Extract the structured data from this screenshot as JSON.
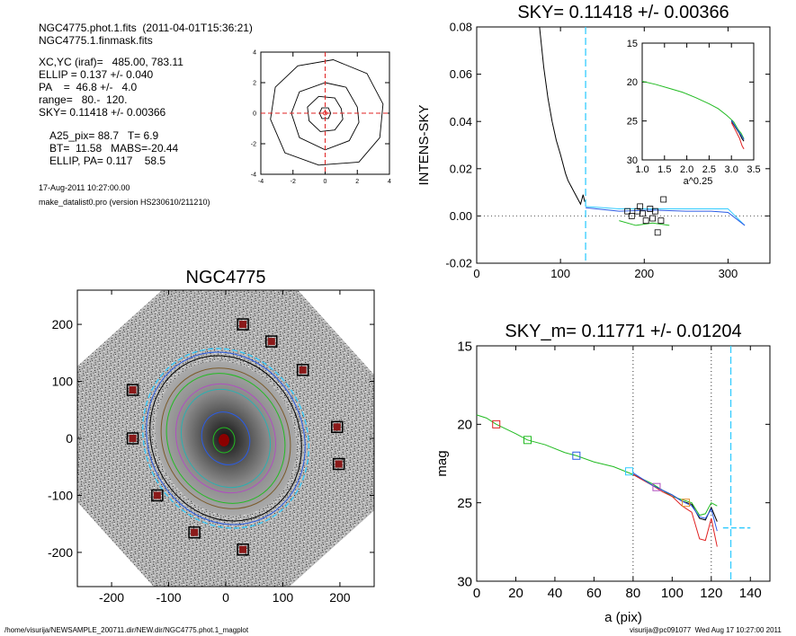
{
  "header": {
    "line1": "NGC4775.phot.1.fits  (2011-04-01T15:36:21)",
    "line2": "NGC4775.1.finmask.fits",
    "line3": "XC,YC (iraf)=   485.00, 783.11",
    "line4": "ELLIP = 0.137 +/- 0.040",
    "line5": "PA    =  46.8 +/-   4.0",
    "line6": "range=   80.-  120.",
    "line7": "SKY= 0.11418 +/- 0.00366",
    "line8": "A25_pix= 88.7   T= 6.9",
    "line9": "BT=  11.58   MABS=-20.44",
    "line10": "ELLIP, PA= 0.117    58.5",
    "date": "17-Aug-2011 10:27:00.00",
    "program": "make_datalist0.pro (version HS230610/211210)"
  },
  "footer": {
    "path": "/home/visurija/NEWSAMPLE_200711.dir/NEW.dir/NGC4775.phot.1_magplot",
    "stamp": "visurija@pc091077  Wed Aug 17 10:27:00 2011"
  },
  "image_title": "NGC4775",
  "colors": {
    "cyan": "#33ccff",
    "red": "#e02020",
    "green": "#22bb22",
    "blue": "#2a5ce6",
    "black": "#000000",
    "magenta": "#b04fc0",
    "orange": "#e09030",
    "gray": "#888888"
  },
  "chart_data": [
    {
      "type": "line",
      "panel": "contour",
      "title": "",
      "xlim": [
        -4,
        4
      ],
      "ylim": [
        -4,
        4
      ],
      "xticks": [
        "-4",
        "-2",
        "0",
        "2",
        "4"
      ],
      "yticks": [
        "-4",
        "-2",
        "0",
        "2",
        "4"
      ],
      "contours": [
        {
          "level": 1,
          "points": [
            [
              0.35,
              0
            ],
            [
              0.2,
              0.35
            ],
            [
              -0.2,
              0.35
            ],
            [
              -0.35,
              0
            ],
            [
              -0.2,
              -0.35
            ],
            [
              0.2,
              -0.35
            ]
          ]
        },
        {
          "level": 2,
          "points": [
            [
              1.0,
              0.3
            ],
            [
              0.6,
              1.0
            ],
            [
              -0.4,
              1.1
            ],
            [
              -1.1,
              0.4
            ],
            [
              -1.0,
              -0.5
            ],
            [
              -0.3,
              -1.2
            ],
            [
              0.6,
              -1.1
            ],
            [
              1.1,
              -0.4
            ]
          ]
        },
        {
          "level": 3,
          "points": [
            [
              2.0,
              0.4
            ],
            [
              1.3,
              1.7
            ],
            [
              0,
              2.0
            ],
            [
              -1.6,
              1.4
            ],
            [
              -2.1,
              0
            ],
            [
              -1.6,
              -1.6
            ],
            [
              0,
              -2.4
            ],
            [
              1.5,
              -1.8
            ],
            [
              2.1,
              -0.6
            ]
          ]
        },
        {
          "level": 4,
          "points": [
            [
              3.6,
              0.6
            ],
            [
              2.6,
              2.6
            ],
            [
              0.5,
              3.5
            ],
            [
              -1.7,
              3.1
            ],
            [
              -3.1,
              1.7
            ],
            [
              -3.4,
              -0.4
            ],
            [
              -2.5,
              -2.6
            ],
            [
              -0.4,
              -3.4
            ],
            [
              2.1,
              -3.2
            ],
            [
              3.4,
              -1.6
            ]
          ]
        }
      ]
    },
    {
      "type": "line",
      "panel": "intensity",
      "title": "SKY= 0.11418 +/- 0.00366",
      "xlabel": "",
      "ylabel": "INTENS-SKY",
      "xlim": [
        0,
        350
      ],
      "ylim": [
        -0.02,
        0.08
      ],
      "xticks": [
        "0",
        "100",
        "200",
        "300"
      ],
      "yticks": [
        "-0.02",
        "0.00",
        "0.02",
        "0.04",
        "0.06",
        "0.08"
      ],
      "sky_level": 0.0,
      "vline_x": 130,
      "profile": {
        "x": [
          75,
          80,
          85,
          90,
          95,
          100,
          103,
          106,
          109,
          112,
          115,
          118,
          121,
          124,
          127,
          129
        ],
        "y": [
          0.08,
          0.063,
          0.05,
          0.04,
          0.032,
          0.026,
          0.022,
          0.018,
          0.015,
          0.013,
          0.011,
          0.009,
          0.007,
          0.005,
          0.009,
          0.006
        ]
      },
      "series": [
        {
          "color": "cyan",
          "x": [
            130,
            170,
            210,
            250,
            280,
            300,
            320
          ],
          "y": [
            0.004,
            0.003,
            0.003,
            0.003,
            0.003,
            0.003,
            -0.004
          ]
        },
        {
          "color": "blue",
          "x": [
            130,
            170,
            210,
            250,
            280,
            300,
            320
          ],
          "y": [
            0.0035,
            0.002,
            0.0025,
            0.002,
            0.002,
            0.0015,
            -0.004
          ]
        },
        {
          "color": "green",
          "x": [
            170,
            190,
            210,
            230
          ],
          "y": [
            -0.002,
            -0.004,
            -0.003,
            -0.004
          ]
        }
      ],
      "points": {
        "x": [
          180,
          185,
          192,
          195,
          198,
          202,
          207,
          210,
          213,
          216,
          220,
          223
        ],
        "y": [
          0.002,
          0.0,
          0.002,
          0.004,
          0.001,
          -0.002,
          0.003,
          -0.001,
          0.002,
          -0.007,
          -0.002,
          0.007
        ]
      },
      "inset": {
        "xlabel": "a^0.25",
        "xlim": [
          1.0,
          3.5
        ],
        "ylim": [
          15,
          30
        ],
        "xticks": [
          "1.0",
          "1.5",
          "2.0",
          "2.5",
          "3.0",
          "3.5"
        ],
        "yticks": [
          "15",
          "20",
          "25",
          "30"
        ],
        "series": [
          {
            "color": "green",
            "x": [
              1.0,
              1.3,
              1.6,
              1.9,
              2.2,
              2.5,
              2.7,
              2.9,
              3.05,
              3.15,
              3.22,
              3.28
            ],
            "y": [
              19.9,
              20.3,
              20.8,
              21.3,
              22.0,
              22.8,
              23.4,
              24.3,
              25.1,
              26.1,
              26.6,
              27.3
            ]
          },
          {
            "color": "red",
            "x": [
              3.0,
              3.1,
              3.18,
              3.24,
              3.28
            ],
            "y": [
              25.2,
              26.3,
              27.2,
              28.2,
              28.6
            ]
          },
          {
            "color": "black",
            "x": [
              3.0,
              3.1,
              3.18,
              3.24,
              3.28
            ],
            "y": [
              25.0,
              25.9,
              26.6,
              27.3,
              27.6
            ]
          },
          {
            "color": "blue",
            "x": [
              3.0,
              3.1,
              3.18,
              3.24,
              3.28
            ],
            "y": [
              24.9,
              25.8,
              26.5,
              27.0,
              27.4
            ]
          }
        ]
      }
    },
    {
      "type": "scatter",
      "panel": "image",
      "title": "NGC4775",
      "xlim": [
        -260,
        260
      ],
      "ylim": [
        -260,
        260
      ],
      "xticks": [
        "-200",
        "-100",
        "0",
        "100",
        "200"
      ],
      "yticks": [
        "-200",
        "-100",
        "0",
        "100",
        "200"
      ],
      "stars": [
        [
          -163,
          85
        ],
        [
          -163,
          0
        ],
        [
          -120,
          -100
        ],
        [
          -55,
          -165
        ],
        [
          30,
          200
        ],
        [
          80,
          170
        ],
        [
          135,
          120
        ],
        [
          195,
          20
        ],
        [
          198,
          -45
        ],
        [
          30,
          -195
        ]
      ]
    },
    {
      "type": "line",
      "panel": "magnitude",
      "title": "SKY_m=  0.11771 +/- 0.01204",
      "xlabel": "a (pix)",
      "ylabel": "mag",
      "xlim": [
        0,
        150
      ],
      "ylim": [
        15,
        30
      ],
      "xticks": [
        "0",
        "20",
        "40",
        "60",
        "80",
        "100",
        "120",
        "140"
      ],
      "yticks": [
        "15",
        "20",
        "25",
        "30"
      ],
      "vlines_dotted": [
        80,
        120
      ],
      "vline_cyan": 130,
      "sky_mark": {
        "x": [
          126,
          140
        ],
        "y": 26.6
      },
      "series": [
        {
          "color": "green",
          "x": [
            0,
            5,
            10,
            20,
            26,
            35,
            45,
            51,
            60,
            70,
            80,
            90,
            95,
            100,
            105,
            110,
            114,
            117,
            120,
            123
          ],
          "y": [
            19.4,
            19.6,
            20.0,
            20.6,
            21.0,
            21.3,
            21.8,
            22.0,
            22.4,
            22.7,
            23.2,
            23.8,
            24.2,
            24.6,
            24.8,
            25.0,
            25.8,
            25.7,
            25.0,
            25.2
          ]
        },
        {
          "color": "black",
          "x": [
            80,
            90,
            95,
            100,
            105,
            110,
            114,
            117,
            120,
            123
          ],
          "y": [
            23.2,
            23.9,
            24.2,
            24.5,
            24.9,
            25.1,
            26.0,
            26.1,
            25.3,
            26.2
          ]
        },
        {
          "color": "red",
          "x": [
            80,
            90,
            95,
            100,
            105,
            110,
            114,
            117,
            120,
            123
          ],
          "y": [
            23.2,
            23.9,
            24.3,
            24.6,
            25.2,
            25.6,
            27.3,
            27.4,
            26.0,
            27.8
          ]
        },
        {
          "color": "blue",
          "x": [
            80,
            90,
            95,
            100,
            105,
            110,
            114,
            117,
            120,
            123
          ],
          "y": [
            23.1,
            23.9,
            24.2,
            24.5,
            24.9,
            25.2,
            25.9,
            26.0,
            25.4,
            26.8
          ]
        }
      ],
      "squares": [
        {
          "color": "red",
          "x": 10,
          "y": 20.0
        },
        {
          "color": "green",
          "x": 26,
          "y": 21.0
        },
        {
          "color": "blue",
          "x": 51,
          "y": 22.0
        },
        {
          "color": "cyan",
          "x": 78,
          "y": 23.0
        },
        {
          "color": "magenta",
          "x": 92,
          "y": 24.0
        },
        {
          "color": "orange",
          "x": 107,
          "y": 25.0
        }
      ]
    }
  ]
}
